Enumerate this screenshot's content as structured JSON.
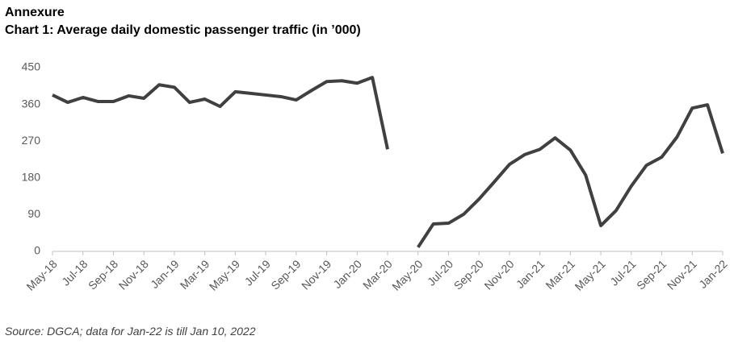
{
  "heading": "Annexure",
  "chart_data": {
    "type": "line",
    "title": "Chart 1: Average daily domestic passenger traffic (in ’000)",
    "source": "Source: DGCA; data for Jan-22 is till Jan 10, 2022",
    "categories": [
      "May-18",
      null,
      "Jul-18",
      null,
      "Sep-18",
      null,
      "Nov-18",
      null,
      "Jan-19",
      null,
      "Mar-19",
      null,
      "May-19",
      null,
      "Jul-19",
      null,
      "Sep-19",
      null,
      "Nov-19",
      null,
      "Jan-20",
      null,
      "Mar-20",
      null,
      "May-20",
      null,
      "Jul-20",
      null,
      "Sep-20",
      null,
      "Nov-20",
      null,
      "Jan-21",
      null,
      "Mar-21",
      null,
      "May-21",
      null,
      "Jul-21",
      null,
      "Sep-21",
      null,
      "Nov-21",
      null,
      "Jan-22"
    ],
    "series": [
      {
        "color": "#404040",
        "values": [
          383,
          365,
          377,
          367,
          367,
          381,
          375,
          408,
          402,
          365,
          373,
          355,
          391,
          387,
          383,
          379,
          371,
          394,
          416,
          418,
          412,
          426,
          250,
          null,
          10,
          67,
          69,
          91,
          128,
          170,
          213,
          237,
          250,
          278,
          248,
          187,
          63,
          100,
          160,
          211,
          231,
          280,
          351,
          359,
          240
        ]
      }
    ],
    "ylim": [
      0,
      450
    ],
    "yticks": [
      0,
      90,
      180,
      270,
      360,
      450
    ],
    "grid": false
  }
}
